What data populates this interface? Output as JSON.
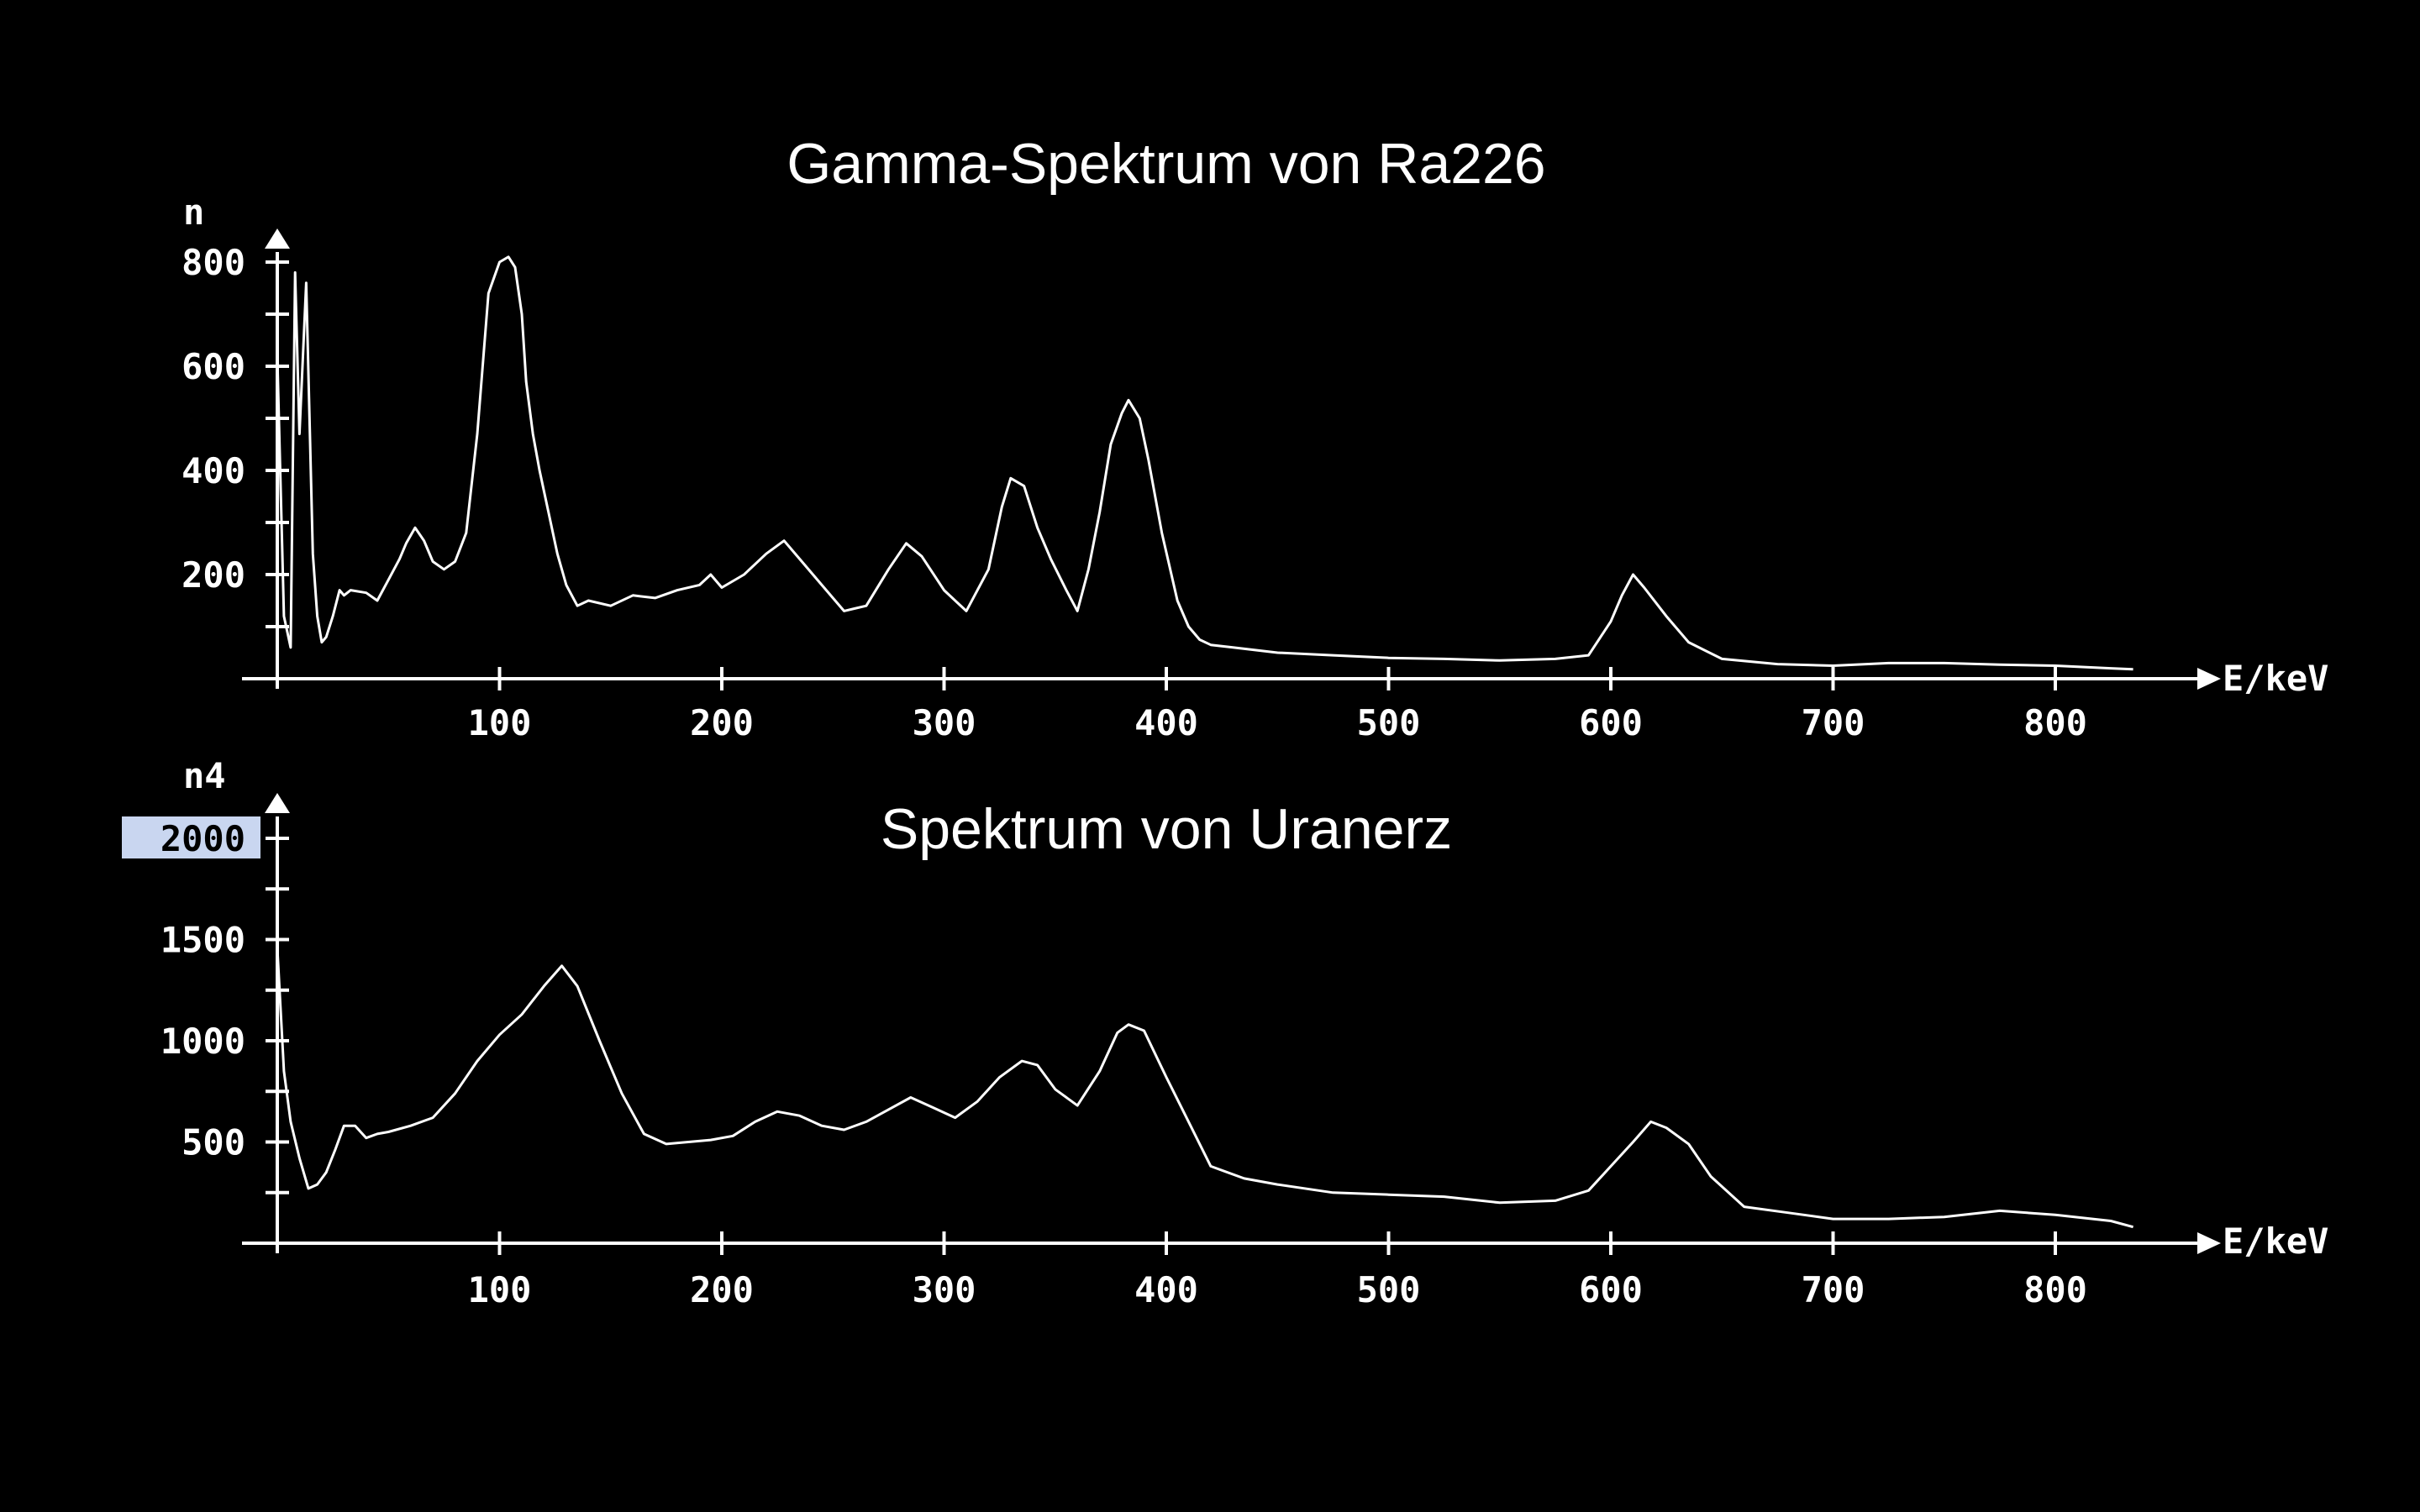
{
  "colors": {
    "background": "#000000",
    "foreground": "#ffffff",
    "highlight": "#c9d6f0"
  },
  "chart_data": [
    {
      "type": "line",
      "title": "Gamma-Spektrum von Ra226",
      "xlabel": "E/keV",
      "ylabel": "n",
      "xlim": [
        0,
        840
      ],
      "ylim": [
        0,
        800
      ],
      "x_ticks": [
        100,
        200,
        300,
        400,
        500,
        600,
        700,
        800
      ],
      "y_ticks": [
        200,
        400,
        600,
        800
      ],
      "grid": false,
      "series": [
        {
          "x": [
            0,
            3,
            6,
            8,
            10,
            13,
            16,
            18,
            20,
            22,
            25,
            28,
            30,
            33,
            40,
            45,
            50,
            55,
            58,
            62,
            66,
            70,
            75,
            80,
            85,
            90,
            95,
            100,
            104,
            107,
            110,
            112,
            115,
            118,
            122,
            126,
            130,
            135,
            140,
            150,
            160,
            170,
            180,
            190,
            195,
            200,
            210,
            220,
            228,
            235,
            245,
            255,
            265,
            275,
            283,
            290,
            300,
            310,
            320,
            326,
            330,
            336,
            342,
            348,
            355,
            360,
            365,
            370,
            375,
            380,
            383,
            388,
            392,
            398,
            405,
            410,
            415,
            420,
            430,
            450,
            475,
            500,
            525,
            550,
            575,
            590,
            600,
            605,
            610,
            615,
            625,
            635,
            650,
            675,
            700,
            725,
            750,
            775,
            800,
            825,
            835
          ],
          "y": [
            620,
            120,
            60,
            780,
            470,
            760,
            240,
            120,
            70,
            80,
            120,
            170,
            160,
            170,
            165,
            150,
            190,
            230,
            260,
            290,
            265,
            225,
            210,
            225,
            280,
            470,
            740,
            800,
            810,
            790,
            700,
            570,
            470,
            400,
            320,
            240,
            180,
            140,
            150,
            140,
            160,
            155,
            170,
            180,
            200,
            175,
            200,
            240,
            265,
            230,
            180,
            130,
            140,
            210,
            260,
            235,
            170,
            130,
            210,
            330,
            385,
            370,
            290,
            230,
            170,
            130,
            210,
            320,
            450,
            510,
            535,
            500,
            420,
            280,
            150,
            100,
            75,
            65,
            60,
            50,
            45,
            40,
            38,
            35,
            38,
            45,
            110,
            160,
            200,
            175,
            120,
            70,
            38,
            28,
            25,
            30,
            30,
            27,
            25,
            20,
            18
          ]
        }
      ]
    },
    {
      "type": "line",
      "title": "Spektrum von Uranerz",
      "xlabel": "E/keV",
      "ylabel": "n4",
      "xlim": [
        0,
        840
      ],
      "ylim": [
        0,
        2000
      ],
      "x_ticks": [
        100,
        200,
        300,
        400,
        500,
        600,
        700,
        800
      ],
      "y_ticks": [
        500,
        1000,
        1500,
        2000
      ],
      "highlighted_y_tick": 2000,
      "grid": false,
      "series": [
        {
          "x": [
            0,
            3,
            6,
            10,
            14,
            18,
            22,
            26,
            30,
            35,
            40,
            45,
            50,
            60,
            70,
            80,
            90,
            100,
            110,
            120,
            128,
            135,
            145,
            155,
            165,
            175,
            185,
            195,
            205,
            215,
            225,
            235,
            245,
            255,
            265,
            275,
            285,
            295,
            305,
            315,
            325,
            335,
            342,
            350,
            360,
            370,
            378,
            383,
            390,
            400,
            410,
            420,
            435,
            450,
            475,
            500,
            525,
            550,
            575,
            590,
            600,
            610,
            618,
            625,
            635,
            645,
            660,
            680,
            700,
            725,
            750,
            775,
            800,
            825,
            835
          ],
          "y": [
            1460,
            850,
            600,
            420,
            270,
            290,
            350,
            460,
            580,
            580,
            520,
            540,
            550,
            580,
            620,
            740,
            900,
            1030,
            1130,
            1270,
            1370,
            1270,
            1000,
            740,
            540,
            490,
            500,
            510,
            530,
            600,
            650,
            630,
            580,
            560,
            600,
            660,
            720,
            670,
            620,
            700,
            820,
            900,
            880,
            760,
            680,
            850,
            1040,
            1080,
            1050,
            820,
            600,
            380,
            320,
            290,
            250,
            240,
            230,
            200,
            210,
            260,
            380,
            500,
            600,
            570,
            490,
            330,
            180,
            150,
            120,
            120,
            130,
            160,
            140,
            110,
            80
          ]
        }
      ]
    }
  ]
}
